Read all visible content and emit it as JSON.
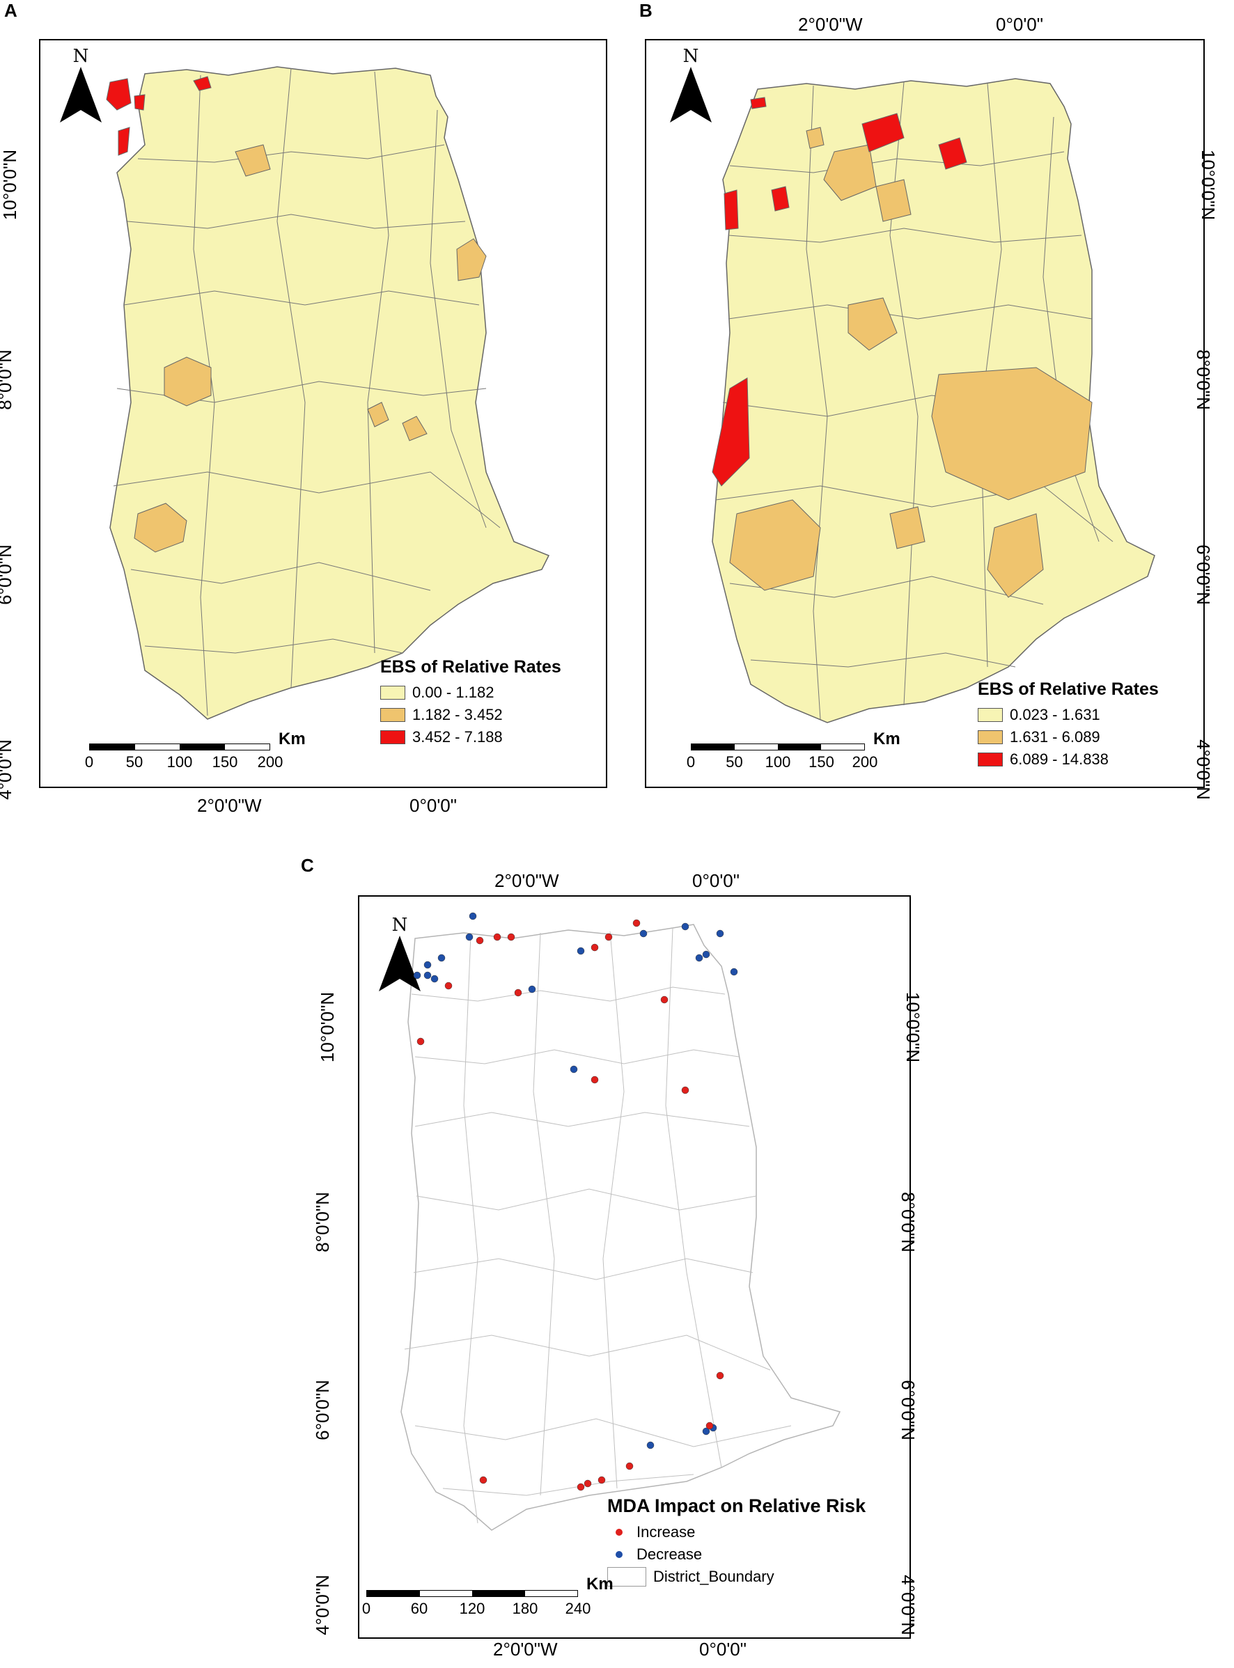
{
  "panels": {
    "A": {
      "letter": "A",
      "north": "N",
      "coords": {
        "x1": "2°0'0\"W",
        "x2": "0°0'0\"",
        "y1": "10°0'0\"N",
        "y2": "8°0'0\"N",
        "y3": "6°0'0\"N",
        "y4": "4°0'0\"N"
      },
      "legend": {
        "title": "EBS of Relative Rates",
        "items": [
          {
            "label": "0.00 - 1.182",
            "color": "#f7f4b4"
          },
          {
            "label": "1.182 - 3.452",
            "color": "#efc46e"
          },
          {
            "label": "3.452 - 7.188",
            "color": "#ee1212"
          }
        ]
      },
      "scale": {
        "unit": "Km",
        "ticks": [
          "0",
          "50",
          "100",
          "150",
          "200"
        ]
      }
    },
    "B": {
      "letter": "B",
      "north": "N",
      "coords": {
        "x1": "2°0'0\"W",
        "x2": "0°0'0\"",
        "y1": "10°0'0\"N",
        "y2": "8°0'0\"N",
        "y3": "6°0'0\"N",
        "y4": "4°0'0\"N"
      },
      "legend": {
        "title": "EBS of Relative Rates",
        "items": [
          {
            "label": "0.023 - 1.631",
            "color": "#f7f4b4"
          },
          {
            "label": "1.631 - 6.089",
            "color": "#efc46e"
          },
          {
            "label": "6.089 - 14.838",
            "color": "#ee1212"
          }
        ]
      },
      "scale": {
        "unit": "Km",
        "ticks": [
          "0",
          "50",
          "100",
          "150",
          "200"
        ]
      }
    },
    "C": {
      "letter": "C",
      "north": "N",
      "coords": {
        "x1": "2°0'0\"W",
        "x2": "0°0'0\"",
        "y1": "10°0'0\"N",
        "y2": "8°0'0\"N",
        "y3": "6°0'0\"N",
        "y4": "4°0'0\"N"
      },
      "legend": {
        "title": "MDA Impact on Relative Risk",
        "items": [
          {
            "label": "Increase",
            "color": "#e0201c"
          },
          {
            "label": "Decrease",
            "color": "#1f4fa8"
          },
          {
            "label": "District_Boundary",
            "color": "#ffffff"
          }
        ]
      },
      "scale": {
        "unit": "Km",
        "ticks": [
          "0",
          "60",
          "120",
          "180",
          "240"
        ]
      }
    }
  }
}
